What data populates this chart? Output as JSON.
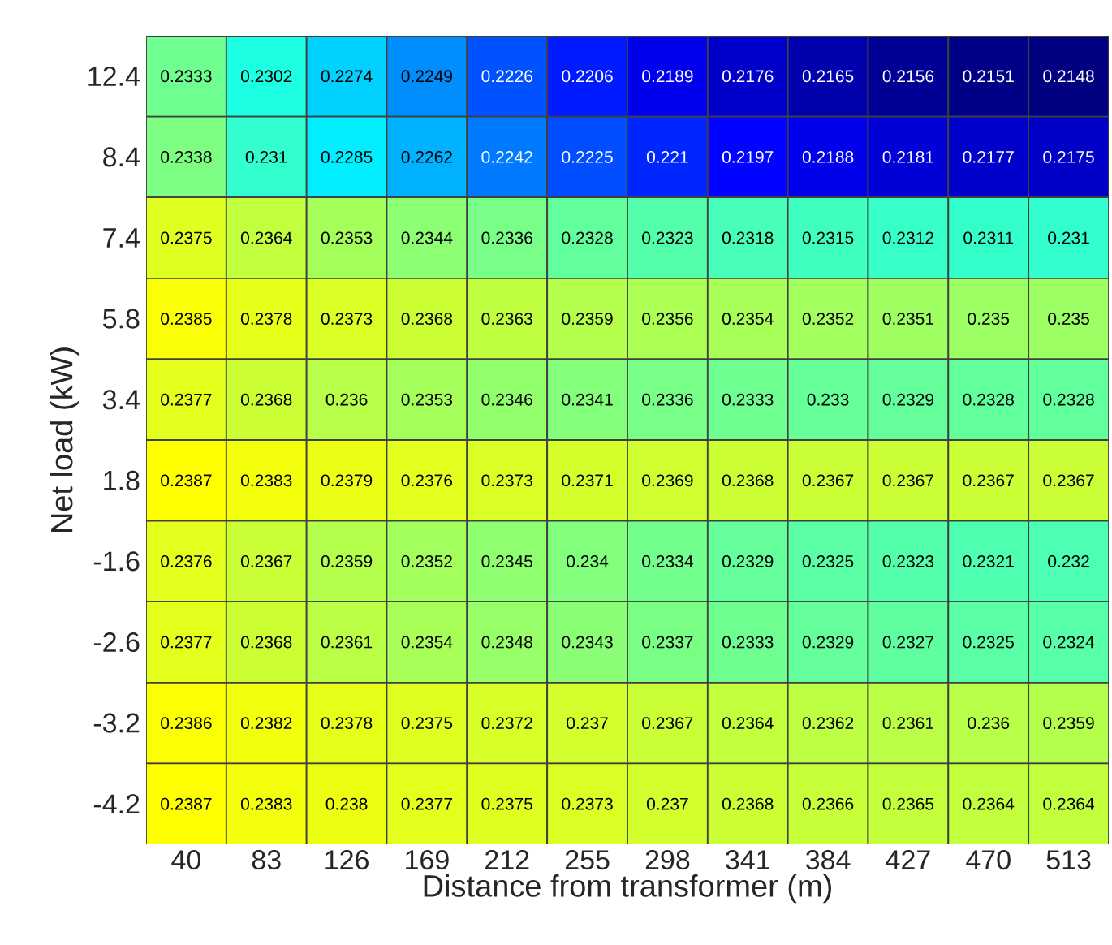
{
  "chart_data": {
    "type": "heatmap",
    "xlabel": "Distance from transformer (m)",
    "ylabel": "Net load (kW)",
    "categories": [
      "40",
      "83",
      "126",
      "169",
      "212",
      "255",
      "298",
      "341",
      "384",
      "427",
      "470",
      "513"
    ],
    "y_categories": [
      "12.4",
      "8.4",
      "7.4",
      "5.8",
      "3.4",
      "1.8",
      "-1.6",
      "-2.6",
      "-3.2",
      "-4.2"
    ],
    "data_labels": true,
    "cells": [
      [
        0.2333,
        0.2302,
        0.2274,
        0.2249,
        0.2226,
        0.2206,
        0.2189,
        0.2176,
        0.2165,
        0.2156,
        0.2151,
        0.2148
      ],
      [
        0.2338,
        0.231,
        0.2285,
        0.2262,
        0.2242,
        0.2225,
        0.221,
        0.2197,
        0.2188,
        0.2181,
        0.2177,
        0.2175
      ],
      [
        0.2375,
        0.2364,
        0.2353,
        0.2344,
        0.2336,
        0.2328,
        0.2323,
        0.2318,
        0.2315,
        0.2312,
        0.2311,
        0.231
      ],
      [
        0.2385,
        0.2378,
        0.2373,
        0.2368,
        0.2363,
        0.2359,
        0.2356,
        0.2354,
        0.2352,
        0.2351,
        0.235,
        0.235
      ],
      [
        0.2377,
        0.2368,
        0.236,
        0.2353,
        0.2346,
        0.2341,
        0.2336,
        0.2333,
        0.233,
        0.2329,
        0.2328,
        0.2328
      ],
      [
        0.2387,
        0.2383,
        0.2379,
        0.2376,
        0.2373,
        0.2371,
        0.2369,
        0.2368,
        0.2367,
        0.2367,
        0.2367,
        0.2367
      ],
      [
        0.2376,
        0.2367,
        0.2359,
        0.2352,
        0.2345,
        0.234,
        0.2334,
        0.2329,
        0.2325,
        0.2323,
        0.2321,
        0.232
      ],
      [
        0.2377,
        0.2368,
        0.2361,
        0.2354,
        0.2348,
        0.2343,
        0.2337,
        0.2333,
        0.2329,
        0.2327,
        0.2325,
        0.2324
      ],
      [
        0.2386,
        0.2382,
        0.2378,
        0.2375,
        0.2372,
        0.237,
        0.2367,
        0.2364,
        0.2362,
        0.2361,
        0.236,
        0.2359
      ],
      [
        0.2387,
        0.2383,
        0.238,
        0.2377,
        0.2375,
        0.2373,
        0.237,
        0.2368,
        0.2366,
        0.2365,
        0.2364,
        0.2364
      ]
    ]
  }
}
